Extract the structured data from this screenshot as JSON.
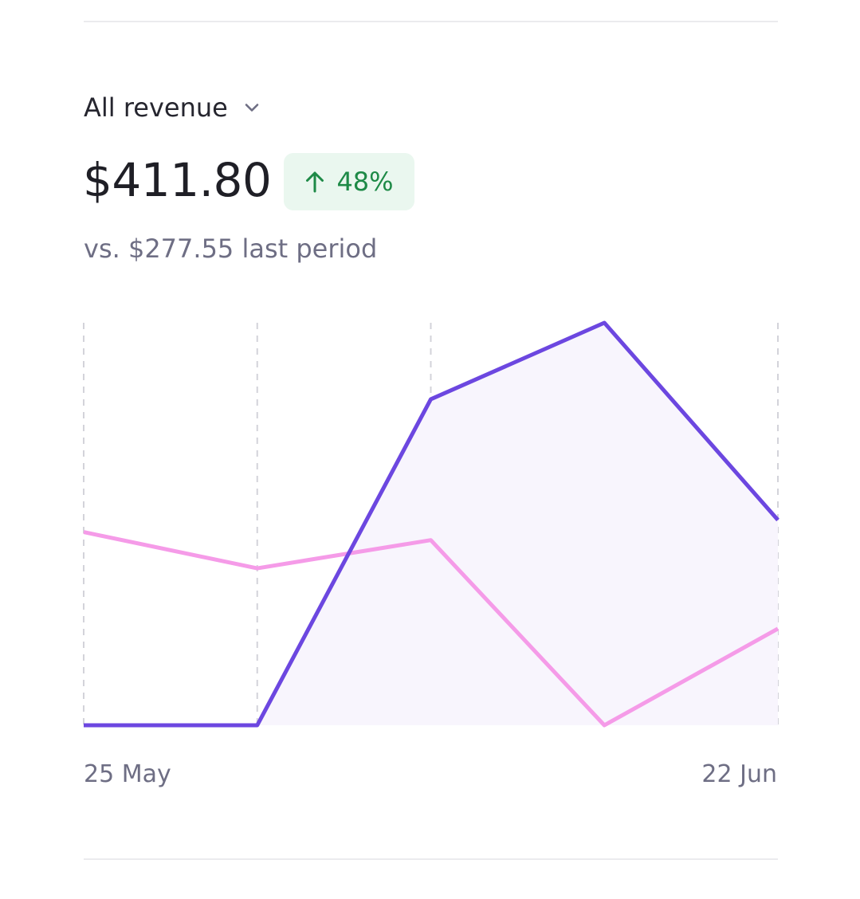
{
  "metric": {
    "selector_label": "All revenue",
    "selector_icon": "chevron-down-icon",
    "amount": "$411.80",
    "change": {
      "direction_icon": "arrow-up-icon",
      "value": "48%",
      "color": "#1e8a47",
      "background": "#eaf7ef"
    },
    "comparison": "vs. $277.55 last period"
  },
  "chart_data": {
    "type": "line",
    "x_labels": [
      "25 May",
      "22 Jun"
    ],
    "x": [
      0,
      1,
      2,
      3,
      4
    ],
    "series": [
      {
        "values": [
          0,
          0,
          0.81,
          1.0,
          0.51
        ],
        "color": "#6c47e0",
        "fill": "#f8f5fd"
      },
      {
        "values": [
          0.48,
          0.39,
          0.46,
          0,
          0.24
        ],
        "color": "#f59be8"
      }
    ],
    "ylim": [
      0,
      1
    ],
    "grid": "vertical-dashed"
  }
}
